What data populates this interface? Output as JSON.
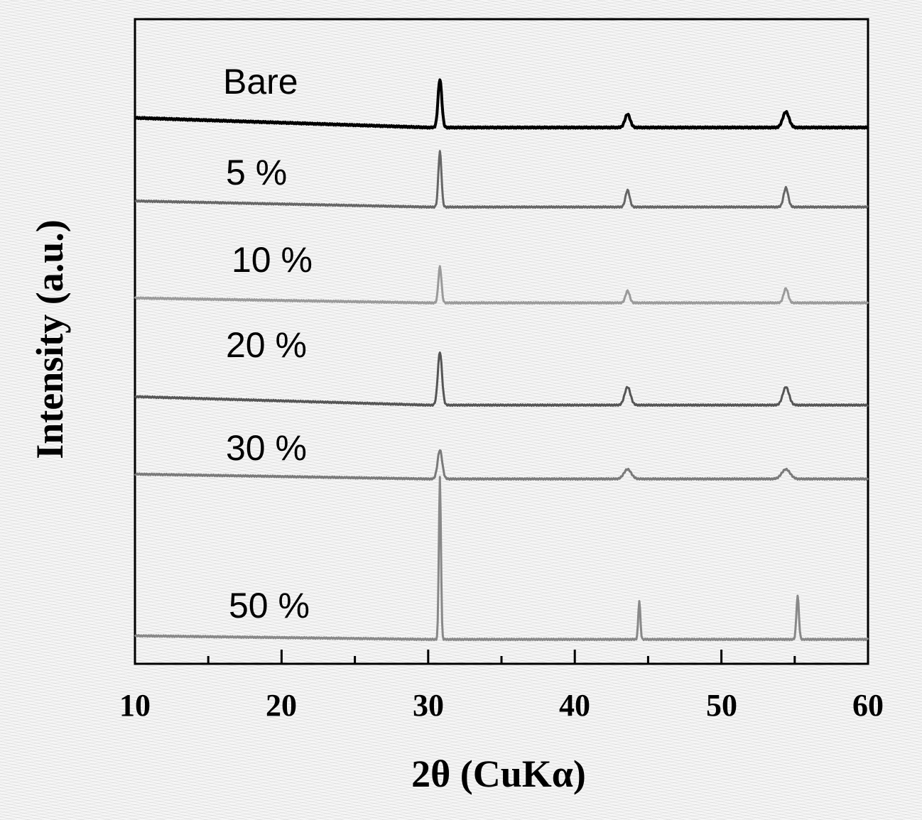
{
  "chart_data": {
    "type": "line",
    "title": "",
    "xlabel": "2θ (CuKα)",
    "ylabel": "Intensity (a.u.)",
    "xlim": [
      10,
      60
    ],
    "xticks": [
      10,
      20,
      30,
      40,
      50,
      60
    ],
    "y_tick_labels": "none",
    "grid": false,
    "legend": "inline labels",
    "series": [
      {
        "name": "Bare",
        "color": "#000000",
        "baseline": 0.1,
        "background_start": 0.4,
        "peaks": [
          {
            "x": 30.8,
            "height": 2.0,
            "width": 0.18
          },
          {
            "x": 43.6,
            "height": 0.55,
            "width": 0.25
          },
          {
            "x": 54.4,
            "height": 0.65,
            "width": 0.3
          }
        ]
      },
      {
        "name": "5 %",
        "color": "#666666",
        "baseline": 0.1,
        "background_start": 0.25,
        "peaks": [
          {
            "x": 30.8,
            "height": 2.3,
            "width": 0.15
          },
          {
            "x": 43.6,
            "height": 0.7,
            "width": 0.2
          },
          {
            "x": 54.4,
            "height": 0.8,
            "width": 0.22
          }
        ]
      },
      {
        "name": "10 %",
        "color": "#9a9a9a",
        "baseline": 0.1,
        "background_start": 0.2,
        "peaks": [
          {
            "x": 30.8,
            "height": 1.5,
            "width": 0.15
          },
          {
            "x": 43.6,
            "height": 0.5,
            "width": 0.2
          },
          {
            "x": 54.4,
            "height": 0.6,
            "width": 0.22
          }
        ]
      },
      {
        "name": "20 %",
        "color": "#555555",
        "baseline": 0.1,
        "background_start": 0.35,
        "peaks": [
          {
            "x": 30.8,
            "height": 2.2,
            "width": 0.2
          },
          {
            "x": 43.6,
            "height": 0.75,
            "width": 0.28
          },
          {
            "x": 54.4,
            "height": 0.75,
            "width": 0.3
          }
        ]
      },
      {
        "name": "30 %",
        "color": "#7a7a7a",
        "baseline": 0.1,
        "background_start": 0.2,
        "peaks": [
          {
            "x": 30.8,
            "height": 1.2,
            "width": 0.22
          },
          {
            "x": 43.6,
            "height": 0.4,
            "width": 0.35
          },
          {
            "x": 54.4,
            "height": 0.4,
            "width": 0.4
          }
        ]
      },
      {
        "name": "50 %",
        "color": "#888888",
        "baseline": 0.1,
        "background_start": 0.15,
        "peaks": [
          {
            "x": 30.8,
            "height": 6.7,
            "width": 0.1
          },
          {
            "x": 44.4,
            "height": 1.6,
            "width": 0.1
          },
          {
            "x": 55.2,
            "height": 1.8,
            "width": 0.12
          }
        ]
      }
    ]
  }
}
